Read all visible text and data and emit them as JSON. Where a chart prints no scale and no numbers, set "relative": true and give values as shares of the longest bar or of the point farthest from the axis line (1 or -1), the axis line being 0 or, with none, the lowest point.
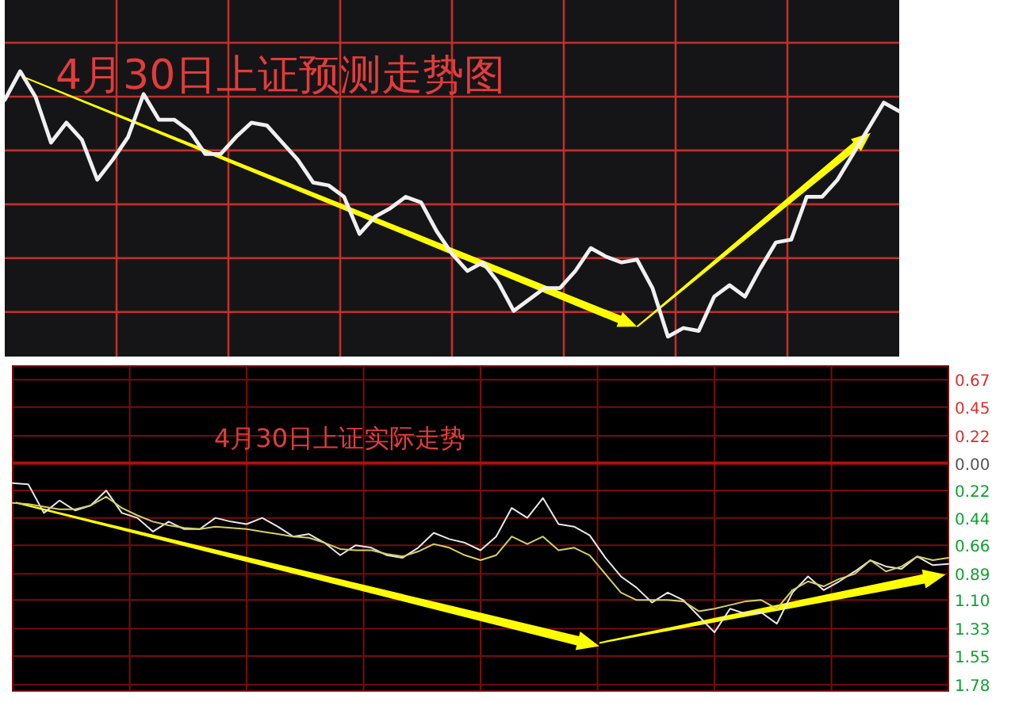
{
  "chart_data": [
    {
      "type": "line",
      "title": "4月30日上证预测走势图",
      "relative": true,
      "grid": true,
      "categories": [
        null,
        null,
        null,
        null,
        null,
        null,
        null,
        null,
        null,
        null,
        null,
        null,
        null,
        null,
        null,
        null,
        null,
        null,
        null,
        null,
        null,
        null,
        null,
        null,
        null,
        null,
        null,
        null,
        null,
        null,
        null,
        null,
        null,
        null,
        null,
        null,
        null,
        null,
        null,
        null,
        null,
        null,
        null,
        null,
        null,
        null,
        null,
        null,
        null,
        null,
        null,
        null,
        null,
        null,
        null,
        null,
        null,
        null,
        null
      ],
      "series": [
        {
          "color": "#f0f0f0",
          "values": [
            0.9,
            1.0,
            0.91,
            0.75,
            0.82,
            0.76,
            0.62,
            0.69,
            0.77,
            0.92,
            0.83,
            0.83,
            0.79,
            0.71,
            0.71,
            0.77,
            0.82,
            0.81,
            0.75,
            0.69,
            0.61,
            0.6,
            0.56,
            0.43,
            0.49,
            0.52,
            0.56,
            0.54,
            0.44,
            0.36,
            0.3,
            0.33,
            0.26,
            0.16,
            0.2,
            0.24,
            0.24,
            0.3,
            0.38,
            0.35,
            0.33,
            0.34,
            0.24,
            0.07,
            0.1,
            0.09,
            0.21,
            0.25,
            0.21,
            0.31,
            0.4,
            0.41,
            0.56,
            0.56,
            0.62,
            0.71,
            0.8,
            0.89,
            0.86
          ]
        }
      ]
    },
    {
      "type": "line",
      "title": "4月30日上证实际走势",
      "ylim": [
        -1.83,
        0.78
      ],
      "ref_lines": [
        {
          "axis": "y",
          "value": 0,
          "color": "#b01010"
        }
      ],
      "tick_labels": "y",
      "grid": true,
      "categories": [
        null,
        null,
        null,
        null,
        null,
        null,
        null,
        null,
        null,
        null,
        null,
        null,
        null,
        null,
        null,
        null,
        null,
        null,
        null,
        null,
        null,
        null,
        null,
        null,
        null,
        null,
        null,
        null,
        null,
        null,
        null,
        null,
        null,
        null,
        null,
        null,
        null,
        null,
        null,
        null,
        null,
        null,
        null,
        null,
        null,
        null,
        null,
        null,
        null,
        null,
        null,
        null,
        null,
        null,
        null,
        null,
        null,
        null,
        null,
        null,
        null
      ],
      "yticks": [
        {
          "value": 0.67,
          "label": "0.67"
        },
        {
          "value": 0.45,
          "label": "0.45"
        },
        {
          "value": 0.22,
          "label": "0.22"
        },
        {
          "value": 0,
          "label": "0.00"
        },
        {
          "value": -0.22,
          "label": "0.22"
        },
        {
          "value": -0.44,
          "label": "0.44"
        },
        {
          "value": -0.66,
          "label": "0.66"
        },
        {
          "value": -0.89,
          "label": "0.89"
        },
        {
          "value": -1.1,
          "label": "1.10"
        },
        {
          "value": -1.33,
          "label": "1.33"
        },
        {
          "value": -1.55,
          "label": "1.55"
        },
        {
          "value": -1.78,
          "label": "1.78"
        }
      ],
      "series": [
        {
          "color": "#e8e8e8",
          "values": [
            -0.16,
            -0.17,
            -0.4,
            -0.3,
            -0.38,
            -0.34,
            -0.22,
            -0.4,
            -0.44,
            -0.55,
            -0.47,
            -0.53,
            -0.53,
            -0.44,
            -0.47,
            -0.49,
            -0.44,
            -0.51,
            -0.59,
            -0.57,
            -0.64,
            -0.74,
            -0.66,
            -0.68,
            -0.74,
            -0.76,
            -0.68,
            -0.56,
            -0.61,
            -0.64,
            -0.7,
            -0.59,
            -0.36,
            -0.44,
            -0.28,
            -0.49,
            -0.51,
            -0.58,
            -0.76,
            -0.91,
            -1.0,
            -1.12,
            -1.04,
            -1.1,
            -1.23,
            -1.36,
            -1.17,
            -1.21,
            -1.2,
            -1.29,
            -1.04,
            -0.91,
            -1.02,
            -0.95,
            -0.87,
            -0.78,
            -0.83,
            -0.85,
            -0.75,
            -0.82,
            -0.81
          ]
        },
        {
          "color": "#d8d060",
          "values": [
            -0.32,
            -0.33,
            -0.35,
            -0.37,
            -0.37,
            -0.34,
            -0.27,
            -0.36,
            -0.42,
            -0.47,
            -0.5,
            -0.52,
            -0.53,
            -0.51,
            -0.52,
            -0.53,
            -0.55,
            -0.57,
            -0.59,
            -0.6,
            -0.64,
            -0.69,
            -0.7,
            -0.7,
            -0.73,
            -0.75,
            -0.71,
            -0.65,
            -0.68,
            -0.74,
            -0.78,
            -0.74,
            -0.59,
            -0.65,
            -0.59,
            -0.7,
            -0.68,
            -0.74,
            -0.89,
            -1.04,
            -1.1,
            -1.1,
            -1.1,
            -1.11,
            -1.19,
            -1.17,
            -1.14,
            -1.11,
            -1.1,
            -1.17,
            -1.02,
            -0.95,
            -0.99,
            -0.93,
            -0.89,
            -0.78,
            -0.87,
            -0.83,
            -0.75,
            -0.78,
            -0.76
          ]
        }
      ]
    }
  ]
}
